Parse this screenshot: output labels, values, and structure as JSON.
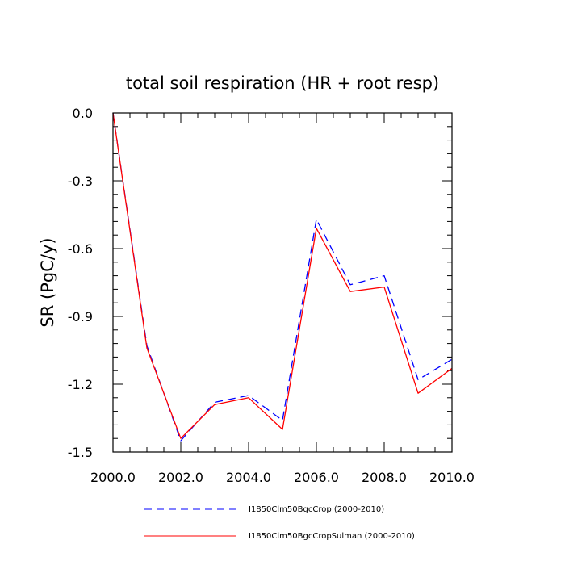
{
  "chart_data": {
    "type": "line",
    "title": "total soil respiration (HR + root resp)",
    "xlabel": "",
    "ylabel": "SR  (PgC/y)",
    "xlim": [
      2000,
      2010
    ],
    "ylim": [
      -1.5,
      0.0
    ],
    "x_ticks": [
      "2000.0",
      "2002.0",
      "2004.0",
      "2006.0",
      "2008.0",
      "2010.0"
    ],
    "x_tick_values": [
      2000,
      2002,
      2004,
      2006,
      2008,
      2010
    ],
    "y_ticks": [
      "0.0",
      "-0.3",
      "-0.6",
      "-0.9",
      "-1.2",
      "-1.5"
    ],
    "y_tick_values": [
      0.0,
      -0.3,
      -0.6,
      -0.9,
      -1.2,
      -1.5
    ],
    "grid": false,
    "legend_position": "bottom",
    "x": [
      2000,
      2001,
      2002,
      2003,
      2004,
      2005,
      2006,
      2007,
      2008,
      2009,
      2010
    ],
    "series": [
      {
        "name": "I1850Clm50BgcCrop (2000-2010)",
        "color": "#0000ff",
        "style": "dashed",
        "values": [
          0.0,
          -1.03,
          -1.45,
          -1.28,
          -1.25,
          -1.36,
          -0.47,
          -0.76,
          -0.72,
          -1.18,
          -1.09
        ]
      },
      {
        "name": "I1850Clm50BgcCropSulman (2000-2010)",
        "color": "#ff0000",
        "style": "solid",
        "values": [
          0.0,
          -1.04,
          -1.44,
          -1.29,
          -1.26,
          -1.4,
          -0.51,
          -0.79,
          -0.77,
          -1.24,
          -1.13
        ]
      }
    ]
  }
}
